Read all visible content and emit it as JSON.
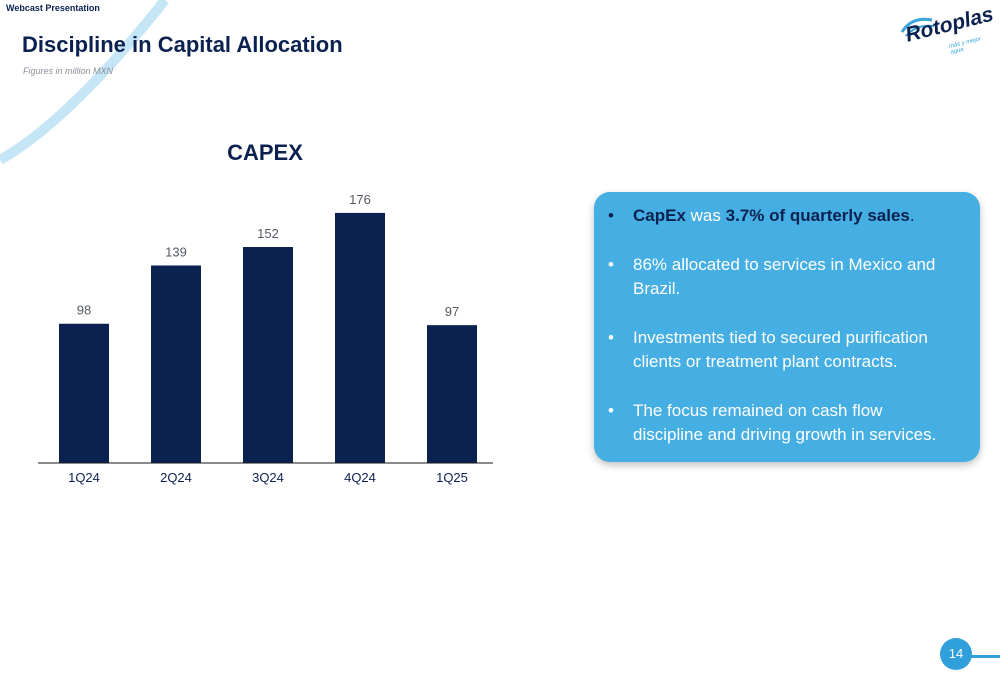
{
  "header": {
    "label": "Webcast Presentation",
    "title": "Discipline in Capital Allocation",
    "subtitle": "Figures in million MXN"
  },
  "logo": {
    "name": "Rotoplas",
    "tagline": "más y mejor agua"
  },
  "chart_data": {
    "type": "bar",
    "title": "CAPEX",
    "categories": [
      "1Q24",
      "2Q24",
      "3Q24",
      "4Q24",
      "1Q25"
    ],
    "values": [
      98,
      139,
      152,
      176,
      97
    ],
    "ylim": [
      0,
      190
    ],
    "grid": false,
    "bar_color": "#0b2250"
  },
  "bullets": {
    "b1": {
      "part1": "CapEx",
      "part2": " was ",
      "part3": "3.7% of quarterly sales",
      "part4": "."
    },
    "b2": "86% allocated to services in Mexico and Brazil.",
    "b3": "Investments tied to secured purification clients or treatment plant contracts.",
    "b4": "The focus remained on cash flow discipline and driving growth in services."
  },
  "colors": {
    "navy": "#0b2250",
    "accent": "#45aee3",
    "swoosh": "#c5e6f7"
  },
  "page_number": "14"
}
